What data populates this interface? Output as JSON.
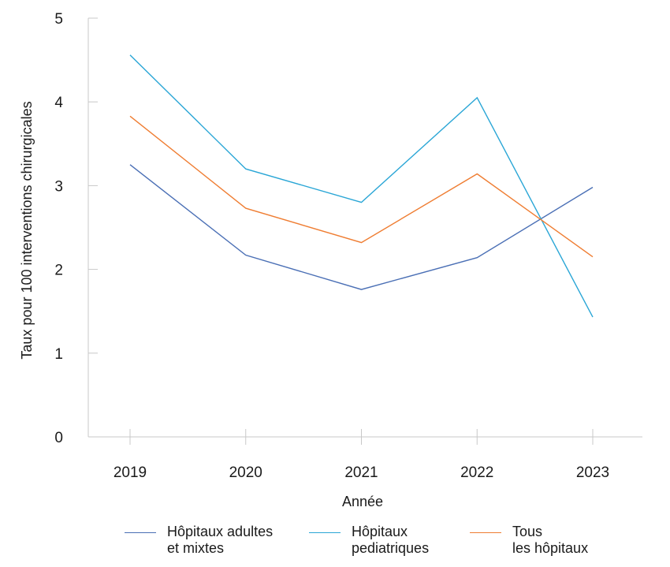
{
  "chart_data": {
    "type": "line",
    "xlabel": "Année",
    "ylabel": "Taux pour 100 interventions chirurgicales",
    "categories": [
      "2019",
      "2020",
      "2021",
      "2022",
      "2023"
    ],
    "ylim": [
      0,
      5
    ],
    "yticks": [
      "0",
      "1",
      "2",
      "3",
      "4",
      "5"
    ],
    "grid": false,
    "legend_position": "bottom",
    "series": [
      {
        "name": "Hôpitaux adultes et mixtes",
        "legend_lines": [
          "Hôpitaux adultes",
          "et mixtes"
        ],
        "color": "#4a6fb5",
        "values": [
          3.25,
          2.17,
          1.76,
          2.14,
          2.98
        ]
      },
      {
        "name": "Hôpitaux pediatriques",
        "legend_lines": [
          "Hôpitaux",
          "pediatriques"
        ],
        "color": "#2aa6d6",
        "values": [
          4.56,
          3.2,
          2.8,
          4.05,
          1.43
        ]
      },
      {
        "name": "Tous les hôpitaux",
        "legend_lines": [
          "Tous",
          "les hôpitaux"
        ],
        "color": "#ef7d32",
        "values": [
          3.83,
          2.73,
          2.32,
          3.14,
          2.15
        ]
      }
    ]
  }
}
